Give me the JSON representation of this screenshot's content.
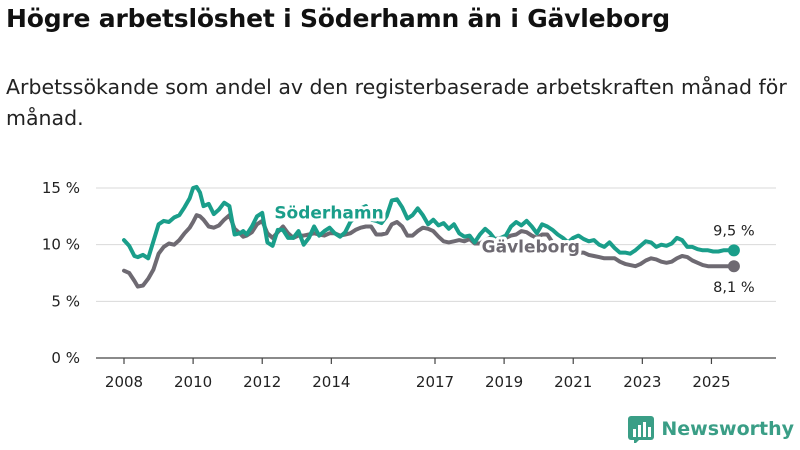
{
  "title": "Högre arbetslöshet i Söderhamn än i Gävleborg",
  "subtitle": "Arbetssökande som andel av den registerbaserade arbetskraften månad för månad.",
  "brand": "Newsworthy",
  "colors": {
    "soderhamn": "#1a9e8a",
    "gavleborg": "#6e6a72",
    "grid": "#d9d9d9",
    "axis": "#444444",
    "brand": "#3a9e86"
  },
  "chart_data": {
    "type": "line",
    "title": "Högre arbetslöshet i Söderhamn än i Gävleborg",
    "xlabel": "",
    "ylabel": "",
    "xlim": [
      2008.0,
      2026.0
    ],
    "ylim": [
      0,
      15
    ],
    "x_ticks": [
      2008,
      2010,
      2012,
      2014,
      2017,
      2019,
      2021,
      2023,
      2025
    ],
    "x_tick_labels": [
      "2008",
      "2010",
      "2012",
      "2014",
      "2017",
      "2019",
      "2021",
      "2023",
      "2025"
    ],
    "y_ticks": [
      0,
      5,
      10,
      15
    ],
    "y_tick_labels": [
      "0 %",
      "5 %",
      "10 %",
      "15 %"
    ],
    "series": [
      {
        "name": "Söderhamn",
        "label": "Söderhamn",
        "end_label": "9,5 %",
        "x": [
          2008.0,
          2008.15,
          2008.3,
          2008.4,
          2008.55,
          2008.7,
          2008.85,
          2009.0,
          2009.15,
          2009.3,
          2009.45,
          2009.6,
          2009.75,
          2009.9,
          2010.0,
          2010.1,
          2010.2,
          2010.3,
          2010.45,
          2010.6,
          2010.75,
          2010.9,
          2011.05,
          2011.2,
          2011.35,
          2011.45,
          2011.55,
          2011.7,
          2011.85,
          2012.0,
          2012.15,
          2012.3,
          2012.45,
          2012.6,
          2012.75,
          2012.9,
          2013.05,
          2013.2,
          2013.35,
          2013.5,
          2013.65,
          2013.8,
          2013.95,
          2014.1,
          2014.25,
          2014.4,
          2014.55,
          2014.7,
          2014.85,
          2015.0,
          2015.15,
          2015.3,
          2015.45,
          2015.6,
          2015.75,
          2015.9,
          2016.05,
          2016.2,
          2016.35,
          2016.5,
          2016.65,
          2016.8,
          2016.95,
          2017.1,
          2017.25,
          2017.4,
          2017.55,
          2017.7,
          2017.85,
          2018.0,
          2018.15,
          2018.3,
          2018.45,
          2018.6,
          2018.75,
          2018.9,
          2019.05,
          2019.2,
          2019.35,
          2019.5,
          2019.65,
          2019.8,
          2019.95,
          2020.1,
          2020.25,
          2020.4,
          2020.55,
          2020.7,
          2020.85,
          2021.0,
          2021.15,
          2021.3,
          2021.45,
          2021.6,
          2021.75,
          2021.9,
          2022.05,
          2022.2,
          2022.35,
          2022.5,
          2022.65,
          2022.8,
          2022.95,
          2023.1,
          2023.25,
          2023.4,
          2023.55,
          2023.7,
          2023.85,
          2024.0,
          2024.15,
          2024.3,
          2024.45,
          2024.6,
          2024.75,
          2024.9,
          2025.05,
          2025.2,
          2025.35,
          2025.5,
          2025.65
        ],
        "y": [
          10.4,
          9.9,
          9.0,
          8.9,
          9.1,
          8.8,
          10.3,
          11.8,
          12.1,
          12.0,
          12.4,
          12.6,
          13.3,
          14.1,
          15.0,
          15.1,
          14.6,
          13.4,
          13.6,
          12.7,
          13.1,
          13.7,
          13.4,
          10.9,
          11.0,
          11.2,
          10.9,
          11.6,
          12.5,
          12.8,
          10.2,
          9.9,
          11.3,
          11.3,
          10.6,
          10.6,
          11.2,
          10.0,
          10.6,
          11.6,
          10.8,
          11.2,
          11.5,
          11.0,
          10.7,
          11.1,
          12.0,
          12.5,
          13.2,
          13.4,
          12.2,
          12.1,
          11.9,
          12.5,
          13.9,
          14.0,
          13.3,
          12.3,
          12.6,
          13.2,
          12.6,
          11.8,
          12.2,
          11.7,
          11.9,
          11.4,
          11.8,
          11.0,
          10.7,
          10.8,
          10.2,
          10.9,
          11.4,
          11.0,
          10.4,
          10.6,
          10.8,
          11.6,
          12.0,
          11.7,
          12.1,
          11.6,
          11.0,
          11.8,
          11.6,
          11.3,
          10.9,
          10.6,
          10.2,
          10.6,
          10.8,
          10.5,
          10.3,
          10.4,
          10.0,
          9.8,
          10.2,
          9.7,
          9.3,
          9.3,
          9.2,
          9.5,
          9.9,
          10.3,
          10.2,
          9.8,
          10.0,
          9.9,
          10.1,
          10.6,
          10.4,
          9.8,
          9.8,
          9.6,
          9.5,
          9.5,
          9.4,
          9.4,
          9.5,
          9.5,
          9.5
        ]
      },
      {
        "name": "Gävleborg",
        "label": "Gävleborg",
        "end_label": "8,1 %",
        "x": [
          2008.0,
          2008.15,
          2008.3,
          2008.4,
          2008.55,
          2008.7,
          2008.85,
          2009.0,
          2009.15,
          2009.3,
          2009.45,
          2009.6,
          2009.75,
          2009.9,
          2010.0,
          2010.1,
          2010.2,
          2010.3,
          2010.45,
          2010.6,
          2010.75,
          2010.9,
          2011.05,
          2011.2,
          2011.35,
          2011.45,
          2011.55,
          2011.7,
          2011.85,
          2012.0,
          2012.15,
          2012.3,
          2012.45,
          2012.6,
          2012.75,
          2012.9,
          2013.05,
          2013.2,
          2013.35,
          2013.5,
          2013.65,
          2013.8,
          2013.95,
          2014.1,
          2014.25,
          2014.4,
          2014.55,
          2014.7,
          2014.85,
          2015.0,
          2015.15,
          2015.3,
          2015.45,
          2015.6,
          2015.75,
          2015.9,
          2016.05,
          2016.2,
          2016.35,
          2016.5,
          2016.65,
          2016.8,
          2016.95,
          2017.1,
          2017.25,
          2017.4,
          2017.55,
          2017.7,
          2017.85,
          2018.0,
          2018.15,
          2018.3,
          2018.45,
          2018.6,
          2018.75,
          2018.9,
          2019.05,
          2019.2,
          2019.35,
          2019.5,
          2019.65,
          2019.8,
          2019.95,
          2020.1,
          2020.25,
          2020.4,
          2020.55,
          2020.7,
          2020.85,
          2021.0,
          2021.15,
          2021.3,
          2021.45,
          2021.6,
          2021.75,
          2021.9,
          2022.05,
          2022.2,
          2022.35,
          2022.5,
          2022.65,
          2022.8,
          2022.95,
          2023.1,
          2023.25,
          2023.4,
          2023.55,
          2023.7,
          2023.85,
          2024.0,
          2024.15,
          2024.3,
          2024.45,
          2024.6,
          2024.75,
          2024.9,
          2025.05,
          2025.2,
          2025.35,
          2025.5,
          2025.65
        ],
        "y": [
          7.7,
          7.5,
          6.8,
          6.3,
          6.4,
          7.0,
          7.8,
          9.2,
          9.8,
          10.1,
          10.0,
          10.4,
          11.0,
          11.5,
          12.0,
          12.6,
          12.5,
          12.2,
          11.6,
          11.5,
          11.7,
          12.2,
          12.6,
          11.4,
          11.0,
          10.7,
          10.8,
          11.1,
          11.8,
          12.1,
          11.0,
          10.6,
          11.1,
          11.6,
          11.0,
          10.6,
          10.8,
          10.8,
          10.9,
          11.0,
          10.9,
          10.8,
          11.0,
          11.0,
          10.8,
          10.9,
          11.0,
          11.3,
          11.5,
          11.6,
          11.6,
          10.9,
          10.9,
          11.0,
          11.8,
          12.0,
          11.6,
          10.8,
          10.8,
          11.2,
          11.5,
          11.4,
          11.2,
          10.7,
          10.3,
          10.2,
          10.3,
          10.4,
          10.3,
          10.5,
          10.1,
          10.1,
          10.4,
          10.6,
          10.5,
          10.6,
          10.6,
          10.8,
          10.9,
          11.2,
          11.1,
          10.8,
          10.6,
          10.9,
          10.9,
          10.2,
          10.0,
          9.8,
          9.5,
          9.4,
          9.3,
          9.3,
          9.1,
          9.0,
          8.9,
          8.8,
          8.8,
          8.8,
          8.5,
          8.3,
          8.2,
          8.1,
          8.3,
          8.6,
          8.8,
          8.7,
          8.5,
          8.4,
          8.5,
          8.8,
          9.0,
          8.9,
          8.6,
          8.4,
          8.2,
          8.1,
          8.1,
          8.1,
          8.1,
          8.1,
          8.1
        ]
      }
    ]
  }
}
